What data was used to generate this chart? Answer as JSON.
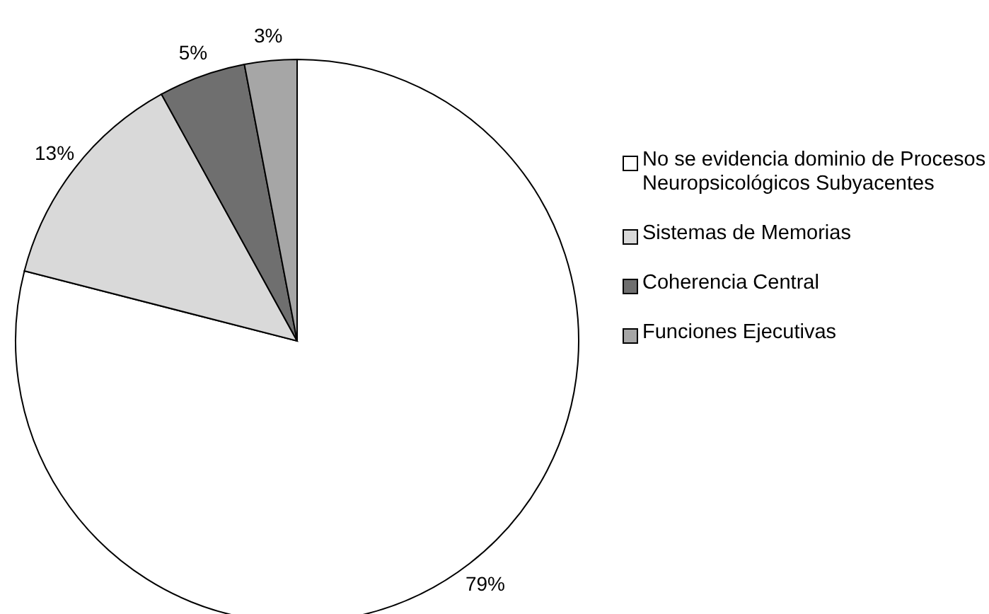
{
  "chart_data": {
    "type": "pie",
    "categories": [
      "No se evidencia dominio de Procesos Neuropsicológicos Subyacentes",
      "Sistemas de Memorias",
      "Coherencia Central",
      "Funciones Ejecutivas"
    ],
    "values": [
      79,
      13,
      5,
      3
    ],
    "colors": [
      "#ffffff",
      "#d9d9d9",
      "#6f6f6f",
      "#a6a6a6"
    ],
    "value_labels": [
      "79%",
      "13%",
      "5%",
      "3%"
    ],
    "legend": "right"
  }
}
